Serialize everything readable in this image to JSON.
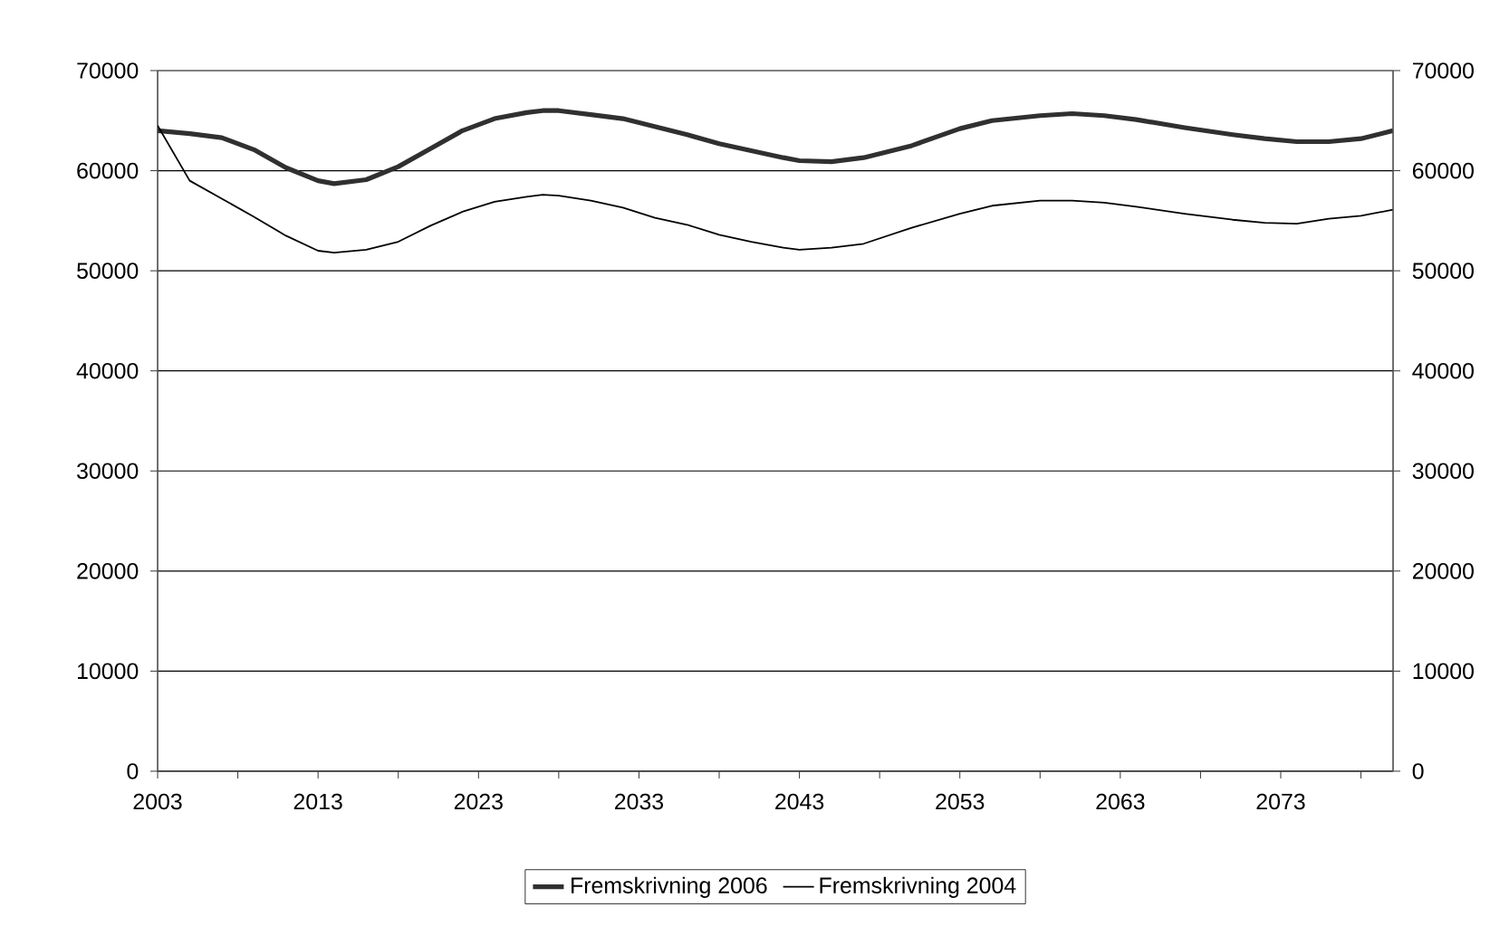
{
  "chart_data": {
    "type": "line",
    "x": [
      2003,
      2005,
      2007,
      2009,
      2011,
      2013,
      2014,
      2016,
      2018,
      2020,
      2022,
      2024,
      2026,
      2027,
      2028,
      2030,
      2032,
      2034,
      2036,
      2038,
      2040,
      2042,
      2043,
      2045,
      2047,
      2050,
      2053,
      2055,
      2058,
      2060,
      2062,
      2064,
      2067,
      2070,
      2072,
      2074,
      2076,
      2078,
      2080
    ],
    "series": [
      {
        "name": "Fremskrivning 2006",
        "color": "#303030",
        "values": [
          64000,
          63700,
          63300,
          62100,
          60300,
          59000,
          58700,
          59100,
          60400,
          62200,
          64000,
          65200,
          65800,
          66000,
          66000,
          65600,
          65200,
          64400,
          63600,
          62700,
          62000,
          61300,
          61000,
          60900,
          61300,
          62500,
          64200,
          65000,
          65500,
          65700,
          65500,
          65100,
          64300,
          63600,
          63200,
          62900,
          62900,
          63200,
          64000
        ]
      },
      {
        "name": "Fremskrivning 2004",
        "color": "#000000",
        "values": [
          64500,
          59000,
          57200,
          55400,
          53500,
          52000,
          51800,
          52100,
          52900,
          54500,
          55900,
          56900,
          57400,
          57600,
          57500,
          57000,
          56300,
          55300,
          54600,
          53600,
          52900,
          52300,
          52100,
          52300,
          52700,
          54300,
          55700,
          56500,
          57000,
          57000,
          56800,
          56400,
          55700,
          55100,
          54800,
          54700,
          55200,
          55500,
          56100
        ]
      }
    ],
    "xlim": [
      2003,
      2080
    ],
    "xticks": [
      2003,
      {
        "value": 2008,
        "label": null
      },
      2013,
      {
        "value": 2018,
        "label": null
      },
      2023,
      {
        "value": 2028,
        "label": null
      },
      2033,
      {
        "value": 2038,
        "label": null
      },
      2043,
      {
        "value": 2048,
        "label": null
      },
      2053,
      {
        "value": 2058,
        "label": null
      },
      2063,
      {
        "value": 2068,
        "label": null
      },
      2073,
      {
        "value": 2078,
        "label": null
      }
    ],
    "ylim": [
      0,
      70000
    ],
    "yticks": [
      0,
      10000,
      20000,
      30000,
      40000,
      50000,
      60000,
      70000
    ],
    "y2lim": [
      0,
      70000
    ],
    "y2ticks": [
      0,
      10000,
      20000,
      30000,
      40000,
      50000,
      60000,
      70000
    ],
    "grid": "y",
    "legend": "bottom",
    "marker": "none",
    "line_style": "solid"
  }
}
